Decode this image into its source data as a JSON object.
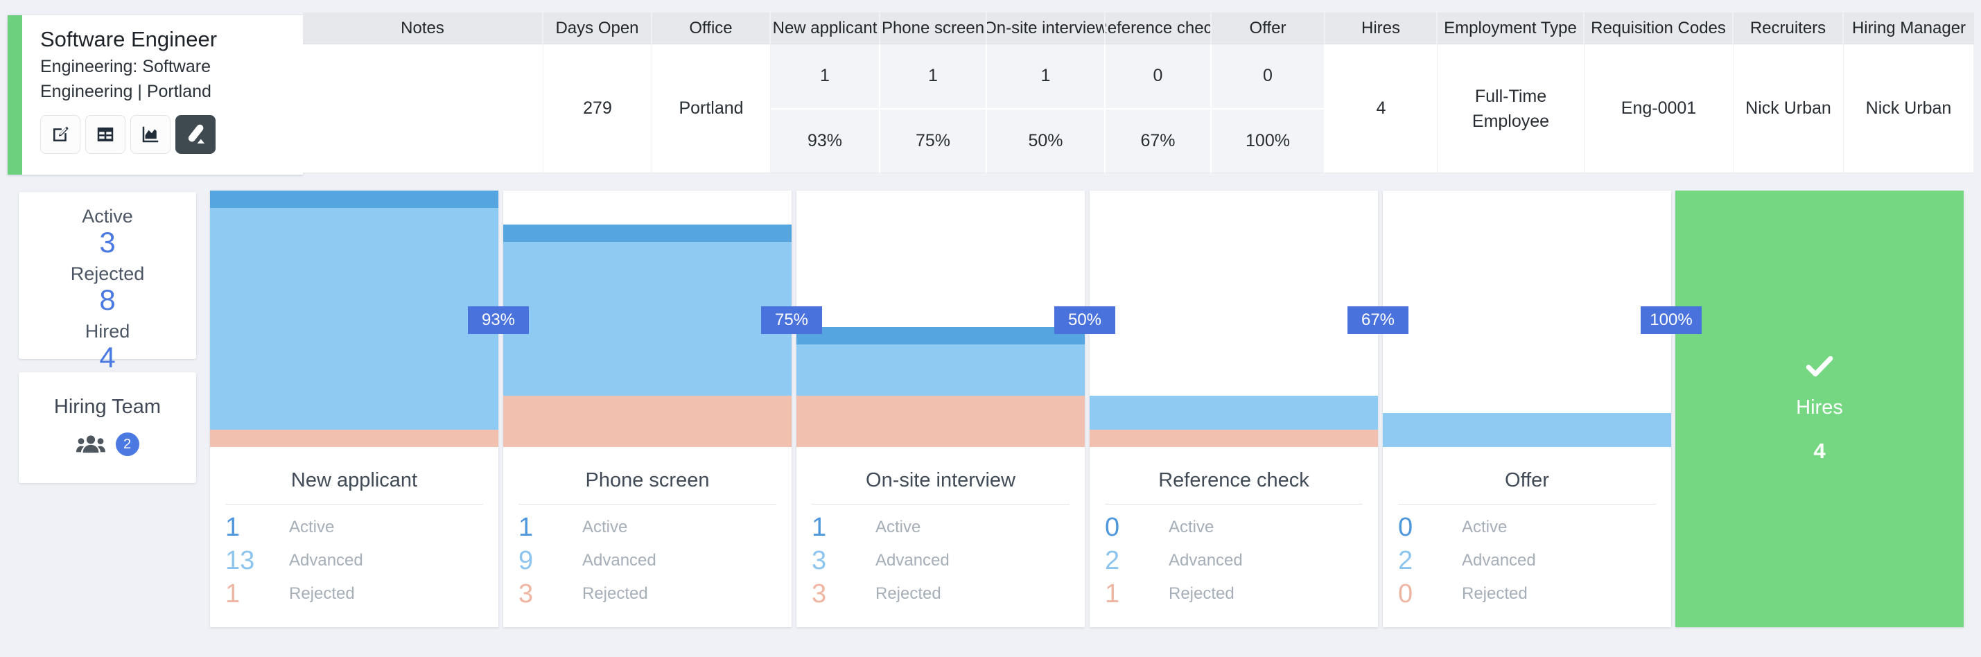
{
  "job_card": {
    "title": "Software Engineer",
    "subtitle_lines": [
      "Engineering: Software",
      "Engineering | Portland"
    ],
    "toolbar": [
      {
        "name": "edit-button",
        "icon": "pencil-square-icon"
      },
      {
        "name": "table-view-button",
        "icon": "table-icon"
      },
      {
        "name": "chart-view-button",
        "icon": "area-chart-icon"
      },
      {
        "name": "lever-pencil-button",
        "icon": "lever-pencil-icon"
      }
    ]
  },
  "summary_table": {
    "headers": [
      "Notes",
      "Days Open",
      "Office",
      "New applicant",
      "Phone screen",
      "On-site interview",
      "Reference check",
      "Offer",
      "Hires",
      "Employment Type",
      "Requisition Codes",
      "Recruiters",
      "Hiring Manager"
    ],
    "row": {
      "notes": "",
      "days_open": "279",
      "office": "Portland",
      "stage_cells": [
        {
          "count": "1",
          "pct": "93%"
        },
        {
          "count": "1",
          "pct": "75%"
        },
        {
          "count": "1",
          "pct": "50%"
        },
        {
          "count": "0",
          "pct": "67%"
        },
        {
          "count": "0",
          "pct": "100%"
        }
      ],
      "hires": "4",
      "employment_type": "Full-Time Employee",
      "requisition_codes": "Eng-0001",
      "recruiters": "Nick Urban",
      "hiring_manager": "Nick Urban"
    }
  },
  "sidebar": {
    "status_card": {
      "items": [
        {
          "label": "Active",
          "value": "3"
        },
        {
          "label": "Rejected",
          "value": "8"
        },
        {
          "label": "Hired",
          "value": "4"
        }
      ]
    },
    "team_card": {
      "title": "Hiring Team",
      "member_count": "2"
    }
  },
  "funnel": {
    "stat_labels": [
      "Active",
      "Advanced",
      "Rejected"
    ],
    "stages": [
      {
        "name": "New applicant",
        "conversion": "93%",
        "active": 1,
        "advanced": 13,
        "rejected": 1
      },
      {
        "name": "Phone screen",
        "conversion": "75%",
        "active": 1,
        "advanced": 9,
        "rejected": 3
      },
      {
        "name": "On-site interview",
        "conversion": "50%",
        "active": 1,
        "advanced": 3,
        "rejected": 3
      },
      {
        "name": "Reference check",
        "conversion": "67%",
        "active": 0,
        "advanced": 2,
        "rejected": 1
      },
      {
        "name": "Offer",
        "conversion": "100%",
        "active": 0,
        "advanced": 2,
        "rejected": 0
      }
    ],
    "hires_block": {
      "label": "Hires",
      "value": "4"
    }
  },
  "colors": {
    "accent_green": "#6dd07e",
    "hires_green": "#76d783",
    "active_bar": "#55a6e0",
    "advanced_bar": "#8ecaf2",
    "rejected_bar": "#f2c0ae",
    "badge_blue": "#4a72dc",
    "number_blue": "#4a79e2"
  }
}
